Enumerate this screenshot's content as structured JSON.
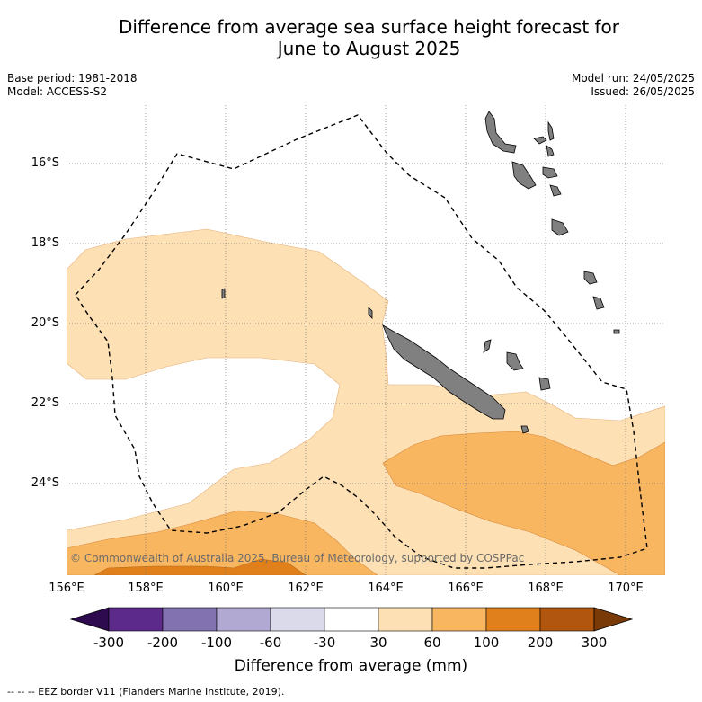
{
  "title_line1": "Difference from average sea surface height forecast for",
  "title_line2": "June to August 2025",
  "meta": {
    "base_period": "Base period: 1981-2018",
    "model": "Model: ACCESS-S2",
    "model_run": "Model run: 24/05/2025",
    "issued": "Issued: 26/05/2025"
  },
  "copyright": "© Commonwealth of Australia 2025, Bureau of Meteorology, supported by COSPPac",
  "footer": "--  --  -- EEZ border V11 (Flanders Marine Institute, 2019).",
  "colors": {
    "land": "#808080",
    "n300": "#2d0b4e",
    "n200": "#5c2a8a",
    "n100": "#8272b0",
    "n60": "#b2a9d2",
    "n30": "#dadaea",
    "zero": "#ffffff",
    "p30": "#fde0b4",
    "p60": "#f9b660",
    "p100": "#e0801c",
    "p200": "#b0560e",
    "p300": "#7a3a08"
  },
  "chart_data": {
    "type": "heatmap",
    "lat_ticks": [
      "16°S",
      "18°S",
      "20°S",
      "22°S",
      "24°S"
    ],
    "lon_ticks": [
      "156°E",
      "158°E",
      "160°E",
      "162°E",
      "164°E",
      "166°E",
      "168°E",
      "170°E"
    ],
    "colorbar": {
      "label": "Difference from average (mm)",
      "ticks": [
        "-300",
        "-200",
        "-100",
        "-60",
        "-30",
        "30",
        "60",
        "100",
        "200",
        "300"
      ],
      "bins": [
        {
          "range": "-300 to -200",
          "color": "#5c2a8a"
        },
        {
          "range": "-200 to -100",
          "color": "#8272b0"
        },
        {
          "range": "-100 to -60",
          "color": "#b2a9d2"
        },
        {
          "range": "-60 to -30",
          "color": "#dadaea"
        },
        {
          "range": "-30 to 30",
          "color": "#ffffff"
        },
        {
          "range": "30 to 60",
          "color": "#fde0b4"
        },
        {
          "range": "60 to 100",
          "color": "#f9b660"
        },
        {
          "range": "100 to 200",
          "color": "#e0801c"
        },
        {
          "range": "200 to 300",
          "color": "#b0560e"
        }
      ],
      "extend": "both"
    }
  }
}
